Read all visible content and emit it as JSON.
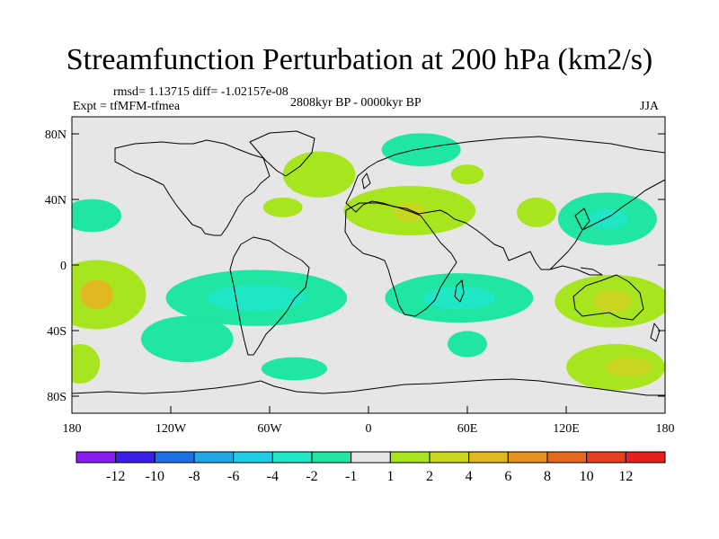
{
  "title": "Streamfunction Perturbation at 200 hPa (km2/s)",
  "stats": "rmsd= 1.13715 diff= -1.02157e-08",
  "experiment": "Expt = tfMFM-tfmea",
  "period": "2808kyr BP - 0000kyr BP",
  "season": "JJA",
  "lat_ticks": [
    "80N",
    "40N",
    "0",
    "40S",
    "80S"
  ],
  "lon_ticks": [
    "180",
    "120W",
    "60W",
    "0",
    "60E",
    "120E",
    "180"
  ],
  "colorbar": {
    "colors": [
      "#8b1ff2",
      "#3b1ee8",
      "#1f6fe6",
      "#1fa7e6",
      "#1fcde6",
      "#1fe6c5",
      "#1fe6a0",
      "#e6e6e6",
      "#a7e61f",
      "#c8d61f",
      "#e0b81f",
      "#e6911f",
      "#e6691f",
      "#e6401f",
      "#e61f1f"
    ],
    "labels": [
      "-12",
      "-10",
      "-8",
      "-6",
      "-4",
      "-2",
      "-1",
      "1",
      "2",
      "4",
      "6",
      "8",
      "10",
      "12"
    ]
  },
  "anomalies": [
    {
      "lon": -165,
      "lat": -18,
      "rlon": 18,
      "rlat": 16,
      "level": "2"
    },
    {
      "lon": -165,
      "lat": -18,
      "rlon": 30,
      "rlat": 21,
      "level": "1"
    },
    {
      "lon": -165,
      "lat": -18,
      "rlon": 10,
      "rlat": 9,
      "level": "4"
    },
    {
      "lon": -175,
      "lat": -60,
      "rlon": 12,
      "rlat": 12,
      "level": "1"
    },
    {
      "lon": -168,
      "lat": 30,
      "rlon": 18,
      "rlat": 10,
      "level": "-1"
    },
    {
      "lon": -110,
      "lat": -45,
      "rlon": 28,
      "rlat": 14,
      "level": "-1"
    },
    {
      "lon": -45,
      "lat": -63,
      "rlon": 20,
      "rlat": 7,
      "level": "-1"
    },
    {
      "lon": -68,
      "lat": -20,
      "rlon": 55,
      "rlat": 17,
      "level": "-1"
    },
    {
      "lon": -68,
      "lat": -20,
      "rlon": 30,
      "rlat": 8,
      "level": "-2"
    },
    {
      "lon": -52,
      "lat": 35,
      "rlon": 12,
      "rlat": 6,
      "level": "1"
    },
    {
      "lon": -30,
      "lat": 55,
      "rlon": 22,
      "rlat": 14,
      "level": "1"
    },
    {
      "lon": 25,
      "lat": 33,
      "rlon": 40,
      "rlat": 15,
      "level": "1"
    },
    {
      "lon": 25,
      "lat": 32,
      "rlon": 10,
      "rlat": 6,
      "level": "2"
    },
    {
      "lon": 32,
      "lat": 70,
      "rlon": 24,
      "rlat": 10,
      "level": "-1"
    },
    {
      "lon": 60,
      "lat": 55,
      "rlon": 10,
      "rlat": 6,
      "level": "1"
    },
    {
      "lon": 55,
      "lat": -20,
      "rlon": 45,
      "rlat": 15,
      "level": "-1"
    },
    {
      "lon": 55,
      "lat": -20,
      "rlon": 22,
      "rlat": 7,
      "level": "-2"
    },
    {
      "lon": 60,
      "lat": -48,
      "rlon": 12,
      "rlat": 8,
      "level": "-1"
    },
    {
      "lon": 102,
      "lat": 32,
      "rlon": 12,
      "rlat": 9,
      "level": "1"
    },
    {
      "lon": 145,
      "lat": 28,
      "rlon": 30,
      "rlat": 16,
      "level": "-1"
    },
    {
      "lon": 145,
      "lat": 28,
      "rlon": 12,
      "rlat": 6,
      "level": "-2"
    },
    {
      "lon": 148,
      "lat": -22,
      "rlon": 35,
      "rlat": 16,
      "level": "1"
    },
    {
      "lon": 148,
      "lat": -22,
      "rlon": 12,
      "rlat": 7,
      "level": "2"
    },
    {
      "lon": 150,
      "lat": -62,
      "rlon": 30,
      "rlat": 14,
      "level": "1"
    },
    {
      "lon": 158,
      "lat": -62,
      "rlon": 14,
      "rlat": 6,
      "level": "2"
    }
  ]
}
